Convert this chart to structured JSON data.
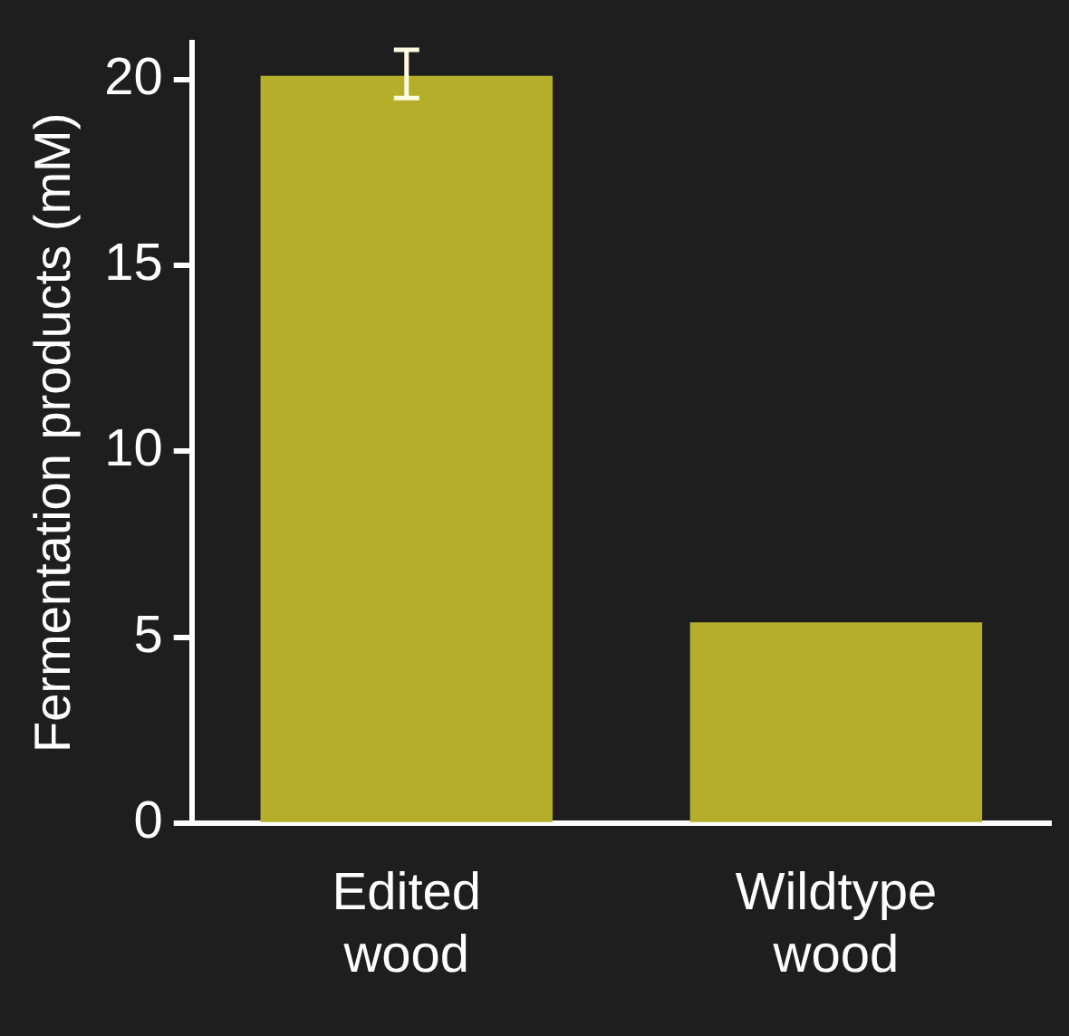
{
  "chart_data": {
    "type": "bar",
    "ylabel": "Fermentation products (mM)",
    "categories": [
      "Edited wood",
      "Wildtype wood"
    ],
    "values": [
      20.1,
      5.4
    ],
    "errors": [
      [
        19.5,
        20.8
      ],
      null
    ],
    "color": "#b5ae2a",
    "ylim": [
      0,
      21
    ],
    "yticks": [
      0,
      5,
      10,
      15,
      20
    ],
    "grid": false,
    "legend": false
  }
}
